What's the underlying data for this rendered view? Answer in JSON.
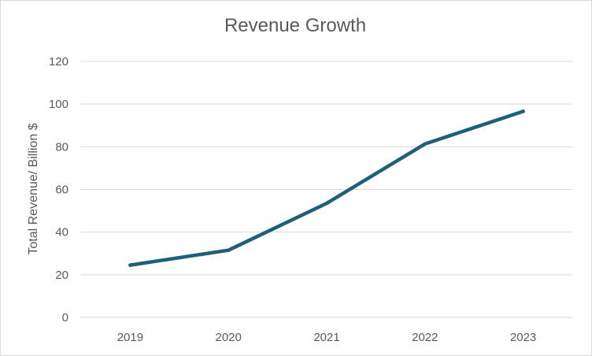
{
  "chart_data": {
    "type": "line",
    "title": "Revenue Growth",
    "xlabel": "",
    "ylabel": "Total Revenue/ Billion $",
    "categories": [
      "2019",
      "2020",
      "2021",
      "2022",
      "2023"
    ],
    "series": [
      {
        "values": [
          24.5,
          31.5,
          53.5,
          81.3,
          96.6
        ],
        "color": "#1f5f7a"
      }
    ],
    "ylim": [
      0,
      120
    ],
    "yticks": [
      "0",
      "20",
      "40",
      "60",
      "80",
      "100",
      "120"
    ],
    "grid": true,
    "legend": "none"
  }
}
